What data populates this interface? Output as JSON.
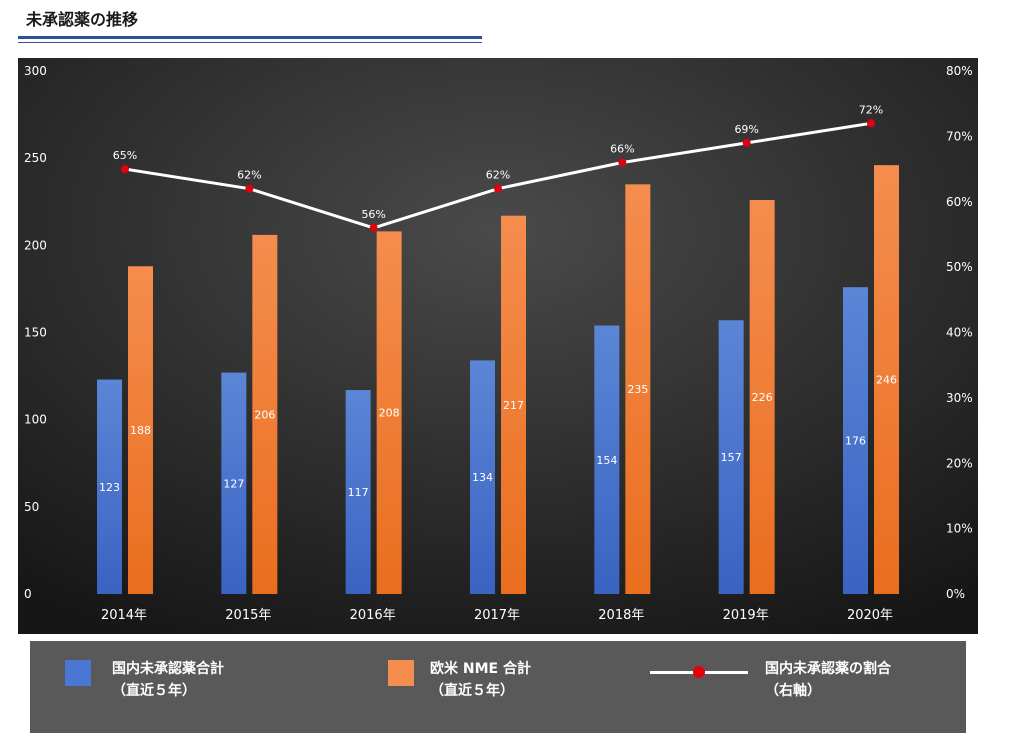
{
  "page": {
    "title": "未承認薬の推移"
  },
  "legend": {
    "domestic_line1": "国内未承認薬合計",
    "domestic_line2": "（直近５年）",
    "western_line1": "欧米 NME 合計",
    "western_line2": "（直近５年）",
    "ratio_line1": "国内未承認薬の割合",
    "ratio_line2": "（右軸）"
  },
  "colors": {
    "background_top": "#3b3b3b",
    "background_bottom": "#181818",
    "domestic": "#4a77d4",
    "western": "#f07d2e",
    "ratio_line": "#ffffff",
    "ratio_marker": "#e3000f"
  },
  "chart_data": {
    "type": "bar+line",
    "title": "未承認薬の推移",
    "categories": [
      "2014年",
      "2015年",
      "2016年",
      "2017年",
      "2018年",
      "2019年",
      "2020年"
    ],
    "series": [
      {
        "name": "国内未承認薬合計（直近５年）",
        "type": "bar",
        "axis": "left",
        "values": [
          123,
          127,
          117,
          134,
          154,
          157,
          176
        ]
      },
      {
        "name": "欧米 NME 合計（直近５年）",
        "type": "bar",
        "axis": "left",
        "values": [
          188,
          206,
          208,
          217,
          235,
          226,
          246
        ]
      },
      {
        "name": "国内未承認薬の割合（右軸）",
        "type": "line",
        "axis": "right",
        "values": [
          65,
          62,
          56,
          62,
          66,
          69,
          72
        ],
        "labels": [
          "65%",
          "62%",
          "56%",
          "62%",
          "66%",
          "69%",
          "72%"
        ]
      }
    ],
    "left_axis": {
      "min": 0,
      "max": 300,
      "step": 50,
      "ticks": [
        "0",
        "50",
        "100",
        "150",
        "200",
        "250",
        "300"
      ]
    },
    "right_axis": {
      "min": 0,
      "max": 80,
      "step": 10,
      "ticks": [
        "0%",
        "10%",
        "20%",
        "30%",
        "40%",
        "50%",
        "60%",
        "70%",
        "80%"
      ]
    },
    "gridlines": false,
    "legend_position": "bottom"
  }
}
